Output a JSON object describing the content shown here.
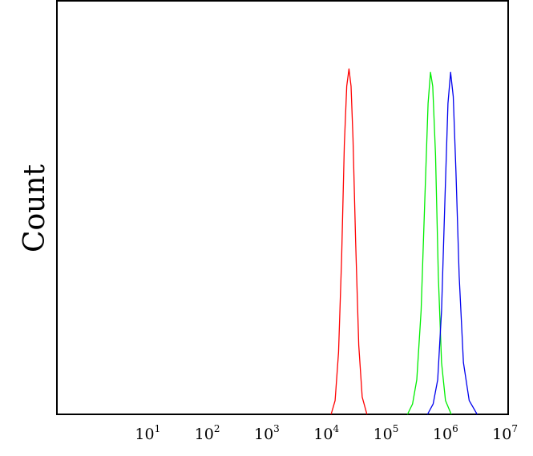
{
  "chart_data": {
    "type": "line",
    "title": "",
    "xlabel": "",
    "ylabel": "Count",
    "x_scale": "log",
    "xlim": [
      1,
      10000000
    ],
    "ylim": [
      0,
      1.0
    ],
    "grid": false,
    "legend": "none",
    "x_ticks": [
      {
        "base": "10",
        "exp": "1",
        "value": 10
      },
      {
        "base": "10",
        "exp": "2",
        "value": 100
      },
      {
        "base": "10",
        "exp": "3",
        "value": 1000
      },
      {
        "base": "10",
        "exp": "4",
        "value": 10000
      },
      {
        "base": "10",
        "exp": "5",
        "value": 100000
      },
      {
        "base": "10",
        "exp": "6",
        "value": 1000000
      },
      {
        "base": "10",
        "exp": "7",
        "value": 10000000
      }
    ],
    "series": [
      {
        "color": "#ff0000",
        "peak_x": 24000,
        "peak_y": 1.0,
        "x": [
          12000,
          14000,
          16000,
          18000,
          20000,
          22000,
          24000,
          26000,
          28000,
          31000,
          35000,
          40000,
          48000
        ],
        "y": [
          0.0,
          0.04,
          0.18,
          0.45,
          0.78,
          0.95,
          1.0,
          0.95,
          0.8,
          0.5,
          0.2,
          0.05,
          0.0
        ]
      },
      {
        "color": "#00ee00",
        "peak_x": 560000,
        "peak_y": 0.99,
        "x": [
          230000,
          280000,
          330000,
          390000,
          450000,
          510000,
          560000,
          610000,
          680000,
          760000,
          860000,
          1000000,
          1250000
        ],
        "y": [
          0.0,
          0.03,
          0.1,
          0.3,
          0.62,
          0.9,
          0.99,
          0.95,
          0.75,
          0.4,
          0.15,
          0.04,
          0.0
        ]
      },
      {
        "color": "#0000ee",
        "peak_x": 1220000,
        "peak_y": 0.99,
        "x": [
          500000,
          620000,
          740000,
          860000,
          980000,
          1100000,
          1220000,
          1350000,
          1500000,
          1700000,
          2000000,
          2500000,
          3400000
        ],
        "y": [
          0.0,
          0.03,
          0.1,
          0.3,
          0.62,
          0.9,
          0.99,
          0.92,
          0.7,
          0.4,
          0.15,
          0.04,
          0.0
        ]
      }
    ]
  }
}
